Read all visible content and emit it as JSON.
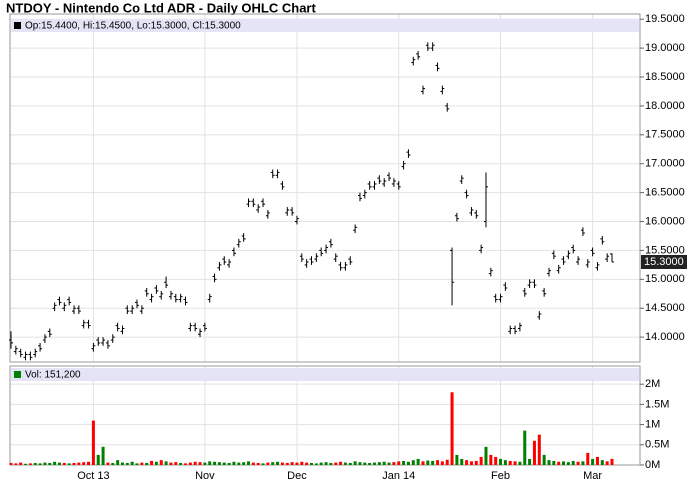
{
  "chart_data": [
    {
      "type": "ohlc",
      "title": "NTDOY - Nintendo Co Ltd ADR - Daily OHLC Chart",
      "legend": "Op:15.4400, Hi:15.4500, Lo:15.3000, Cl:15.3000",
      "last_label": "15.3000",
      "color": "#000000",
      "open": [
        13.95,
        13.75,
        13.75,
        13.65,
        13.7,
        13.7,
        13.85,
        13.95,
        14.1,
        14.5,
        14.65,
        14.5,
        14.65,
        14.45,
        14.5,
        14.2,
        14.25,
        13.8,
        13.95,
        13.9,
        13.9,
        13.95,
        14.2,
        14.1,
        14.5,
        14.45,
        14.6,
        14.45,
        14.8,
        14.65,
        14.85,
        14.7,
        14.95,
        14.7,
        14.7,
        14.65,
        14.65,
        14.15,
        14.2,
        14.05,
        14.2,
        14.65,
        15.05,
        15.2,
        15.35,
        15.25,
        15.5,
        15.6,
        15.75,
        16.3,
        16.35,
        16.2,
        16.35,
        16.1,
        16.85,
        16.8,
        16.65,
        16.15,
        16.2,
        16.0,
        15.4,
        15.25,
        15.35,
        15.35,
        15.5,
        15.5,
        15.65,
        15.35,
        15.25,
        15.2,
        15.35,
        15.85,
        16.45,
        16.45,
        16.65,
        16.6,
        16.75,
        16.65,
        16.8,
        16.65,
        16.65,
        16.95,
        17.2,
        18.75,
        18.9,
        18.25,
        19.05,
        19.0,
        18.7,
        18.25,
        18.0,
        15.5,
        16.1,
        16.7,
        16.5,
        16.15,
        16.15,
        15.5,
        16.0,
        15.1,
        14.7,
        14.65,
        14.9,
        14.1,
        14.15,
        14.15,
        14.8,
        14.9,
        14.95,
        14.35,
        14.8,
        15.1,
        15.45,
        15.15,
        15.35,
        15.4,
        15.55,
        15.3,
        15.85,
        15.25,
        15.5,
        15.2,
        15.7,
        15.35,
        15.44
      ],
      "high": [
        14.1,
        13.85,
        13.8,
        13.75,
        13.75,
        13.8,
        13.9,
        14.05,
        14.15,
        14.6,
        14.7,
        14.6,
        14.7,
        14.55,
        14.55,
        14.3,
        14.3,
        13.9,
        14.0,
        14.0,
        13.95,
        14.05,
        14.25,
        14.2,
        14.55,
        14.55,
        14.65,
        14.55,
        14.85,
        14.75,
        14.9,
        14.8,
        15.05,
        14.8,
        14.75,
        14.75,
        14.7,
        14.25,
        14.25,
        14.15,
        14.25,
        14.75,
        15.1,
        15.3,
        15.4,
        15.35,
        15.55,
        15.7,
        15.8,
        16.4,
        16.4,
        16.3,
        16.4,
        16.2,
        16.9,
        16.9,
        16.7,
        16.25,
        16.25,
        16.1,
        15.45,
        15.35,
        15.4,
        15.45,
        15.55,
        15.6,
        15.7,
        15.45,
        15.3,
        15.3,
        15.4,
        15.95,
        16.5,
        16.55,
        16.7,
        16.7,
        16.8,
        16.75,
        16.85,
        16.75,
        16.7,
        17.05,
        17.25,
        18.85,
        18.95,
        18.35,
        19.1,
        19.1,
        18.75,
        18.35,
        18.05,
        15.55,
        16.15,
        16.8,
        16.55,
        16.25,
        16.2,
        15.6,
        16.85,
        15.2,
        14.75,
        14.75,
        14.95,
        14.2,
        14.2,
        14.25,
        14.85,
        15.0,
        15.0,
        14.45,
        14.85,
        15.2,
        15.5,
        15.25,
        15.4,
        15.5,
        15.6,
        15.4,
        15.9,
        15.35,
        15.55,
        15.3,
        15.75,
        15.45,
        15.45
      ],
      "low": [
        13.8,
        13.7,
        13.65,
        13.6,
        13.6,
        13.65,
        13.75,
        13.9,
        14.0,
        14.45,
        14.55,
        14.45,
        14.55,
        14.4,
        14.4,
        14.15,
        14.15,
        13.75,
        13.85,
        13.85,
        13.8,
        13.9,
        14.1,
        14.05,
        14.4,
        14.4,
        14.5,
        14.4,
        14.7,
        14.6,
        14.75,
        14.65,
        14.85,
        14.65,
        14.6,
        14.6,
        14.55,
        14.1,
        14.1,
        14.0,
        14.1,
        14.6,
        14.95,
        15.15,
        15.25,
        15.2,
        15.4,
        15.55,
        15.65,
        16.25,
        16.25,
        16.15,
        16.25,
        16.05,
        16.75,
        16.75,
        16.55,
        16.1,
        16.1,
        15.95,
        15.3,
        15.2,
        15.25,
        15.3,
        15.4,
        15.45,
        15.55,
        15.3,
        15.15,
        15.15,
        15.25,
        15.8,
        16.35,
        16.4,
        16.55,
        16.55,
        16.65,
        16.6,
        16.7,
        16.6,
        16.55,
        16.9,
        17.1,
        18.7,
        18.8,
        18.2,
        18.95,
        18.95,
        18.6,
        18.2,
        17.9,
        14.55,
        16.0,
        16.65,
        16.4,
        16.1,
        16.05,
        15.45,
        15.9,
        15.05,
        14.6,
        14.6,
        14.8,
        14.05,
        14.05,
        14.1,
        14.7,
        14.85,
        14.85,
        14.3,
        14.7,
        15.05,
        15.35,
        15.1,
        15.25,
        15.35,
        15.45,
        15.25,
        15.75,
        15.2,
        15.4,
        15.15,
        15.6,
        15.3,
        15.3
      ],
      "close": [
        13.9,
        13.8,
        13.7,
        13.7,
        13.65,
        13.75,
        13.8,
        14.0,
        14.05,
        14.55,
        14.6,
        14.55,
        14.6,
        14.5,
        14.45,
        14.25,
        14.2,
        13.85,
        13.9,
        13.95,
        13.85,
        14.0,
        14.15,
        14.15,
        14.45,
        14.5,
        14.55,
        14.5,
        14.75,
        14.7,
        14.8,
        14.75,
        14.9,
        14.75,
        14.65,
        14.7,
        14.6,
        14.2,
        14.15,
        14.1,
        14.15,
        14.7,
        15.0,
        15.25,
        15.3,
        15.3,
        15.45,
        15.65,
        15.7,
        16.35,
        16.3,
        16.25,
        16.3,
        16.15,
        16.8,
        16.85,
        16.6,
        16.2,
        16.15,
        16.05,
        15.35,
        15.3,
        15.3,
        15.4,
        15.45,
        15.55,
        15.6,
        15.4,
        15.2,
        15.25,
        15.3,
        15.9,
        16.4,
        16.5,
        16.6,
        16.65,
        16.7,
        16.7,
        16.75,
        16.7,
        16.6,
        17.0,
        17.15,
        18.8,
        18.85,
        18.3,
        19.0,
        19.05,
        18.65,
        18.3,
        17.95,
        14.95,
        16.05,
        16.75,
        16.45,
        16.2,
        16.1,
        15.55,
        16.6,
        15.15,
        14.65,
        14.7,
        14.85,
        14.15,
        14.1,
        14.2,
        14.75,
        14.95,
        14.9,
        14.4,
        14.75,
        15.15,
        15.4,
        15.2,
        15.3,
        15.45,
        15.5,
        15.35,
        15.8,
        15.3,
        15.45,
        15.25,
        15.65,
        15.4,
        15.3
      ],
      "ylim": [
        13.57,
        19.59
      ],
      "yticks": [
        {
          "value": 19.5,
          "label": "19.5000"
        },
        {
          "value": 19.0,
          "label": "19.0000"
        },
        {
          "value": 18.5,
          "label": "18.5000"
        },
        {
          "value": 18.0,
          "label": "18.0000"
        },
        {
          "value": 17.5,
          "label": "17.5000"
        },
        {
          "value": 17.0,
          "label": "17.0000"
        },
        {
          "value": 16.5,
          "label": "16.5000"
        },
        {
          "value": 16.0,
          "label": "16.0000"
        },
        {
          "value": 15.5,
          "label": "15.5000"
        },
        {
          "value": 15.0,
          "label": "15.0000"
        },
        {
          "value": 14.5,
          "label": "14.5000"
        },
        {
          "value": 14.0,
          "label": "14.0000"
        }
      ],
      "grid": true
    },
    {
      "type": "bar",
      "legend": "Vol: 151,200",
      "up_color": "#008000",
      "down_color": "#ff0000",
      "categories": [
        null,
        null,
        null,
        null,
        null,
        null,
        null,
        null,
        null,
        null,
        null,
        null,
        null,
        null,
        null,
        null,
        null,
        "Oct 13",
        null,
        null,
        null,
        null,
        null,
        null,
        null,
        null,
        null,
        null,
        null,
        null,
        null,
        null,
        null,
        null,
        null,
        null,
        null,
        null,
        null,
        null,
        "Nov",
        null,
        null,
        null,
        null,
        null,
        null,
        null,
        null,
        null,
        null,
        null,
        null,
        null,
        null,
        null,
        null,
        null,
        null,
        "Dec",
        null,
        null,
        null,
        null,
        null,
        null,
        null,
        null,
        null,
        null,
        null,
        null,
        null,
        null,
        null,
        null,
        null,
        null,
        null,
        null,
        "Jan 14",
        null,
        null,
        null,
        null,
        null,
        null,
        null,
        null,
        null,
        null,
        null,
        null,
        null,
        null,
        null,
        null,
        null,
        null,
        null,
        null,
        "Feb",
        null,
        null,
        null,
        null,
        null,
        null,
        null,
        null,
        null,
        null,
        null,
        null,
        null,
        null,
        null,
        null,
        null,
        null,
        "Mar",
        null,
        null,
        null,
        null
      ],
      "values": [
        50000,
        40000,
        60000,
        30000,
        40000,
        50000,
        40000,
        60000,
        50000,
        80000,
        60000,
        50000,
        40000,
        50000,
        60000,
        70000,
        80000,
        1100000,
        250000,
        450000,
        60000,
        50000,
        120000,
        60000,
        50000,
        80000,
        40000,
        60000,
        50000,
        100000,
        80000,
        120000,
        90000,
        60000,
        70000,
        50000,
        40000,
        60000,
        80000,
        70000,
        60000,
        90000,
        80000,
        70000,
        60000,
        50000,
        80000,
        60000,
        70000,
        90000,
        60000,
        50000,
        40000,
        60000,
        70000,
        80000,
        60000,
        50000,
        70000,
        60000,
        80000,
        60000,
        50000,
        40000,
        60000,
        70000,
        50000,
        60000,
        80000,
        60000,
        50000,
        90000,
        70000,
        60000,
        50000,
        60000,
        70000,
        80000,
        60000,
        70000,
        90000,
        100000,
        80000,
        120000,
        150000,
        90000,
        110000,
        100000,
        120000,
        90000,
        130000,
        1800000,
        250000,
        150000,
        120000,
        90000,
        100000,
        200000,
        450000,
        250000,
        200000,
        150000,
        120000,
        100000,
        90000,
        80000,
        850000,
        150000,
        600000,
        750000,
        250000,
        120000,
        100000,
        80000,
        90000,
        70000,
        100000,
        80000,
        90000,
        300000,
        150000,
        200000,
        120000,
        90000,
        151200
      ],
      "ylim": [
        0,
        2450000
      ],
      "yticks": [
        {
          "value": 2000000,
          "label": "2M"
        },
        {
          "value": 1500000,
          "label": "1.5M"
        },
        {
          "value": 1000000,
          "label": "1M"
        },
        {
          "value": 500000,
          "label": "0.5M"
        },
        {
          "value": 0,
          "label": "0M"
        }
      ],
      "grid": true
    }
  ]
}
